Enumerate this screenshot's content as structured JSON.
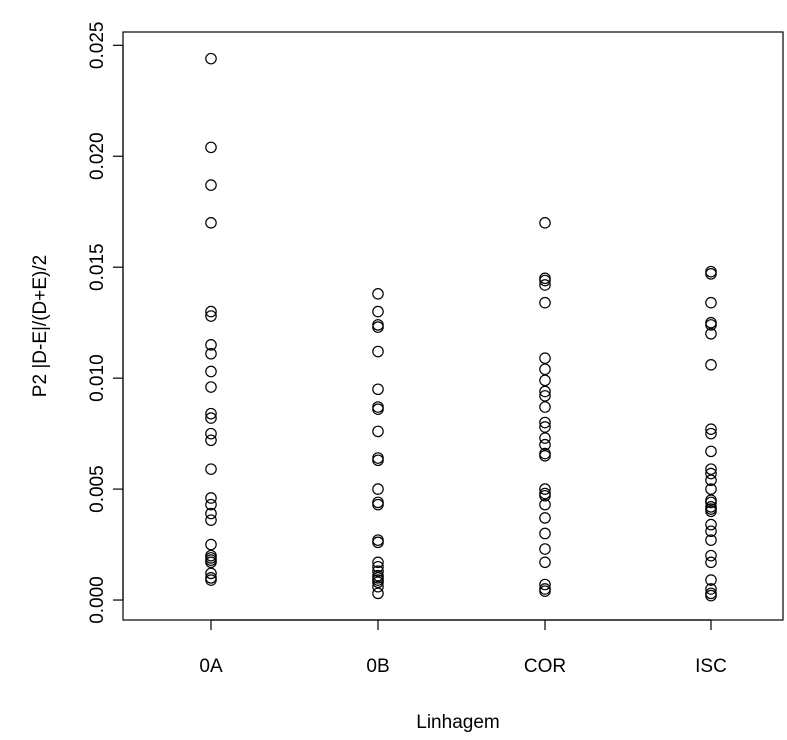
{
  "chart_data": {
    "type": "scatter",
    "title": "",
    "xlabel": "Linhagem",
    "ylabel": "P2 |D-E|/(D+E)/2",
    "categories": [
      "0A",
      "0B",
      "COR",
      "ISC"
    ],
    "y_ticks": [
      "0.000",
      "0.005",
      "0.010",
      "0.015",
      "0.020",
      "0.025"
    ],
    "ylim": [
      -0.0009,
      0.0256
    ],
    "grid": false,
    "series": [
      {
        "category": "0A",
        "values": [
          0.0244,
          0.0204,
          0.0187,
          0.017,
          0.013,
          0.0128,
          0.0115,
          0.0111,
          0.0103,
          0.0096,
          0.0084,
          0.0082,
          0.0075,
          0.0072,
          0.0059,
          0.0046,
          0.0043,
          0.0039,
          0.0036,
          0.0025,
          0.002,
          0.0019,
          0.0018,
          0.0017,
          0.0012,
          0.001,
          0.0009
        ]
      },
      {
        "category": "0B",
        "values": [
          0.0138,
          0.013,
          0.0124,
          0.0123,
          0.0112,
          0.0095,
          0.0087,
          0.0086,
          0.0076,
          0.0064,
          0.0063,
          0.005,
          0.0044,
          0.0043,
          0.0027,
          0.0026,
          0.0017,
          0.0015,
          0.0013,
          0.0011,
          0.001,
          0.0009,
          0.0008,
          0.0006,
          0.0003
        ]
      },
      {
        "category": "COR",
        "values": [
          0.017,
          0.0145,
          0.0144,
          0.0142,
          0.0134,
          0.0109,
          0.0104,
          0.0099,
          0.0094,
          0.0092,
          0.0087,
          0.008,
          0.0078,
          0.0073,
          0.007,
          0.0066,
          0.0065,
          0.005,
          0.0048,
          0.0047,
          0.0043,
          0.0037,
          0.003,
          0.0023,
          0.0017,
          0.0007,
          0.0005,
          0.0004
        ]
      },
      {
        "category": "ISC",
        "values": [
          0.0148,
          0.0147,
          0.0134,
          0.0125,
          0.0124,
          0.012,
          0.0106,
          0.0077,
          0.0075,
          0.0067,
          0.0059,
          0.0057,
          0.0054,
          0.005,
          0.0045,
          0.0044,
          0.0042,
          0.0041,
          0.004,
          0.0034,
          0.0031,
          0.0027,
          0.002,
          0.0017,
          0.0009,
          0.0005,
          0.0003,
          0.0002
        ]
      }
    ]
  }
}
